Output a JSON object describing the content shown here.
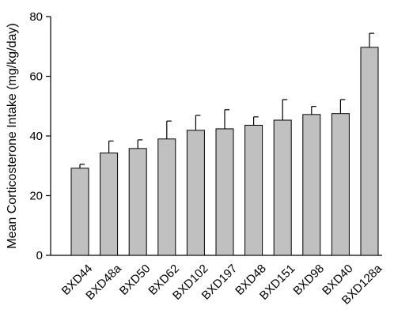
{
  "chart_data": {
    "type": "bar",
    "title": "",
    "xlabel": "",
    "ylabel": "Mean Corticosterone Intake (mg/kg/day)",
    "ylim": [
      0,
      80
    ],
    "yticks": [
      0,
      20,
      40,
      60,
      80
    ],
    "grid": false,
    "bar_color": "#c0c0c0",
    "categories": [
      "BXD44",
      "BXD48a",
      "BXD50",
      "BXD62",
      "BXD102",
      "BXD197",
      "BXD48",
      "BXD151",
      "BXD98",
      "BXD40",
      "BXD128a"
    ],
    "values": [
      29.2,
      34.3,
      35.8,
      39.0,
      41.9,
      42.4,
      43.6,
      45.3,
      47.2,
      47.5,
      69.7
    ],
    "errors": [
      1.3,
      4.0,
      2.9,
      6.0,
      5.0,
      6.4,
      2.8,
      6.9,
      2.7,
      4.7,
      4.7
    ]
  }
}
